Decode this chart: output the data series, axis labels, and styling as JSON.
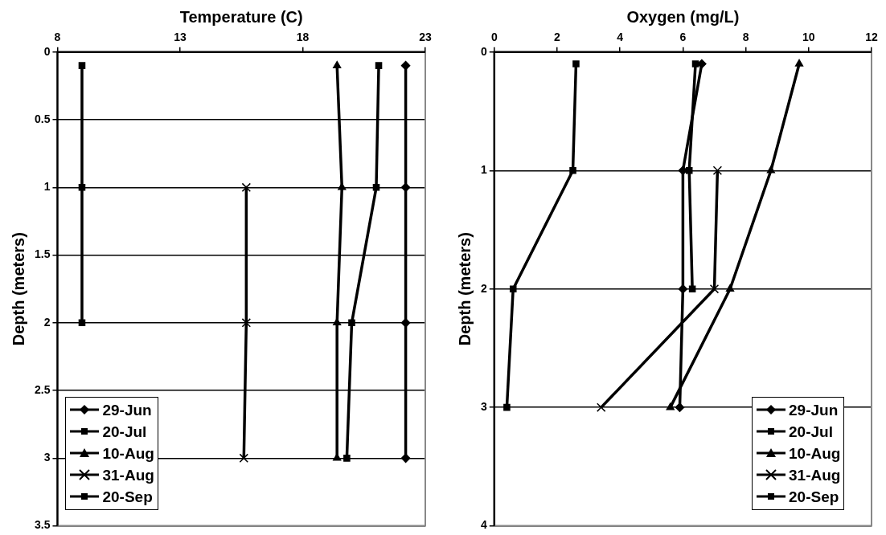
{
  "chart_data": [
    {
      "type": "line",
      "xlabel": "Temperature (C)",
      "ylabel": "Depth (meters)",
      "xlim": [
        8,
        23
      ],
      "xticks": [
        8,
        13,
        18,
        23
      ],
      "ylim": [
        3.5,
        0
      ],
      "yticks": [
        0,
        0.5,
        1,
        1.5,
        2,
        2.5,
        3,
        3.5
      ],
      "grid": "y",
      "legend": "bottom left",
      "series": [
        {
          "name": "29-Jun",
          "color": "#000000",
          "marker": "diamond",
          "x": [
            22.2,
            22.2,
            22.2,
            22.2
          ],
          "values": [
            0.1,
            1,
            2,
            3
          ]
        },
        {
          "name": "20-Jul",
          "color": "#000000",
          "marker": "square",
          "x": [
            21.1,
            21.0,
            20.0,
            19.8
          ],
          "values": [
            0.1,
            1,
            2,
            3
          ]
        },
        {
          "name": "10-Aug",
          "color": "#000000",
          "marker": "triangle",
          "x": [
            19.4,
            19.6,
            19.4,
            19.4
          ],
          "values": [
            0.1,
            1,
            2,
            3
          ]
        },
        {
          "name": "31-Aug",
          "color": "#000000",
          "marker": "cross",
          "x": [
            15.7,
            15.7,
            15.6
          ],
          "values": [
            1,
            2,
            3
          ]
        },
        {
          "name": "20-Sep",
          "color": "#000000",
          "marker": "square",
          "x": [
            9.0,
            9.0,
            9.0
          ],
          "values": [
            0.1,
            1,
            2
          ]
        }
      ]
    },
    {
      "type": "line",
      "xlabel": "Oxygen (mg/L)",
      "ylabel": "Depth (meters)",
      "xlim": [
        0,
        12
      ],
      "xticks": [
        0,
        2,
        4,
        6,
        8,
        10,
        12
      ],
      "ylim": [
        4,
        0
      ],
      "yticks": [
        0,
        1,
        2,
        3,
        4
      ],
      "grid": "y",
      "legend": "bottom right",
      "series": [
        {
          "name": "29-Jun",
          "color": "#000000",
          "marker": "diamond",
          "x": [
            6.6,
            6.0,
            6.0,
            5.9
          ],
          "values": [
            0.1,
            1,
            2,
            3
          ]
        },
        {
          "name": "20-Jul",
          "color": "#000000",
          "marker": "square",
          "x": [
            2.6,
            2.5,
            0.6,
            0.4
          ],
          "values": [
            0.1,
            1,
            2,
            3
          ]
        },
        {
          "name": "10-Aug",
          "color": "#000000",
          "marker": "triangle",
          "x": [
            9.7,
            8.8,
            7.5,
            5.6
          ],
          "values": [
            0.1,
            1,
            2,
            3
          ]
        },
        {
          "name": "31-Aug",
          "color": "#000000",
          "marker": "cross",
          "x": [
            7.1,
            7.0,
            3.4
          ],
          "values": [
            1,
            2,
            3
          ]
        },
        {
          "name": "20-Sep",
          "color": "#000000",
          "marker": "square",
          "x": [
            6.4,
            6.2,
            6.3
          ],
          "values": [
            0.1,
            1,
            2
          ]
        }
      ]
    }
  ]
}
